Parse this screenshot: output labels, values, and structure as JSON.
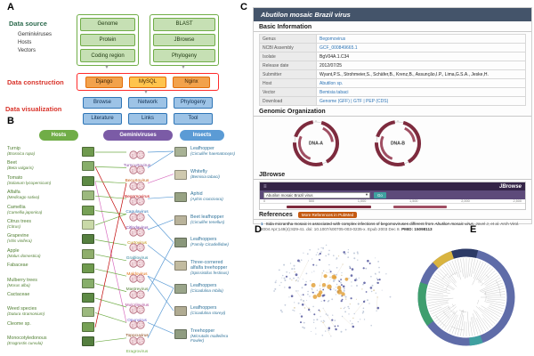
{
  "figure": {
    "labels": {
      "a": "A",
      "b": "B",
      "c": "C",
      "d": "D",
      "e": "E"
    }
  },
  "colors": {
    "green": "#70ad47",
    "green_dark": "#2e6b4f",
    "green_text": "#538135",
    "red_label": "#d9342b",
    "orange": "#f2a24c",
    "orange_border": "#e36c0a",
    "mysql_yellow": "#ffc44d",
    "blue_box": "#9dc3e6",
    "blue_border": "#2e75b6",
    "purple_pill": "#7b5ba6",
    "blue_pill": "#5b9bd5",
    "insect_text": "#31749b",
    "link": "#2e75b6",
    "titlebar": "#44546a",
    "maroon": "#7e2b3e",
    "jbrowse_dark": "#342447",
    "jbrowse_mid": "#5d4a7a",
    "pubmed_btn": "#c55a11",
    "ring_blue": "#5f6ca8",
    "net_small": "#b9c3d6",
    "net_medium": "#55589e",
    "net_accent": "#e3a23c",
    "net_tan": "#d8c8a0"
  },
  "panelA": {
    "data_source_label": "Data source",
    "source_items": [
      "Geminiviruses",
      "Hosts",
      "Vectors"
    ],
    "genomics_boxes": [
      "Genome",
      "Protein",
      "Coding region"
    ],
    "tools_boxes": [
      "BLAST",
      "JBrowse",
      "Phylogeny"
    ],
    "construction_label": "Data construction",
    "construction_boxes": [
      "Django",
      "MySQL",
      "Nginx"
    ],
    "visualization_label": "Data visualization",
    "visualization_boxes_row1": [
      "Browse",
      "Network",
      "Phylogeny"
    ],
    "visualization_boxes_row2": [
      "Literature",
      "Links",
      "Tool"
    ]
  },
  "panelB": {
    "column_headers": {
      "hosts": "Hosts",
      "viruses": "Geminiviruses",
      "insects": "Insects"
    },
    "hosts": [
      {
        "name": "Turnip",
        "latin": "(Brassica rapa)"
      },
      {
        "name": "Beet",
        "latin": "(Beta vulgaris)"
      },
      {
        "name": "Tomato",
        "latin": "(Solanum lycopersicum)"
      },
      {
        "name": "Alfalfa",
        "latin": "(Medicago sativa)"
      },
      {
        "name": "Camellia",
        "latin": "(Camellia japonica)"
      },
      {
        "name": "Citrus trees",
        "latin": "(Citrus)"
      },
      {
        "name": "Grapevine",
        "latin": "(Vitis vinifera)"
      },
      {
        "name": "Apple",
        "latin": "(Malus domestica)"
      },
      {
        "name": "Fabaceae",
        "latin": ""
      },
      {
        "name": "Mulberry trees",
        "latin": "(Morus alba)"
      },
      {
        "name": "Cactaceae",
        "latin": ""
      },
      {
        "name": "Weed species",
        "latin": "(Datura stramonium)"
      },
      {
        "name": "Cleome sp.",
        "latin": ""
      },
      {
        "name": "Monocotyledonous",
        "latin": "(Eragrostis curvula)"
      }
    ],
    "viruses": [
      {
        "name": "Turncurtovirus",
        "color": "#8a4ea6"
      },
      {
        "name": "Becurtovirus",
        "color": "#c55a11"
      },
      {
        "name": "Begomovirus",
        "color": "#c00000"
      },
      {
        "name": "Capulavirus",
        "color": "#2e75b6"
      },
      {
        "name": "Citlodavirus",
        "color": "#7030a0"
      },
      {
        "name": "Curtovirus",
        "color": "#bf8f00"
      },
      {
        "name": "Grablovirus",
        "color": "#31869b"
      },
      {
        "name": "Maldovirus",
        "color": "#e36c0a"
      },
      {
        "name": "Mastrevirus",
        "color": "#538135"
      },
      {
        "name": "Mulcrilevirus",
        "color": "#b04a98"
      },
      {
        "name": "Opunvirus",
        "color": "#6a5acd"
      },
      {
        "name": "Topocuvirus",
        "color": "#843c0c"
      },
      {
        "name": "Eragrovirus",
        "color": "#70ad47"
      }
    ],
    "insects": [
      {
        "name": "Leafhopper",
        "latin": "(Circulifer haematoceps)"
      },
      {
        "name": "Whitefly",
        "latin": "(Bemisia tabaci)"
      },
      {
        "name": "Aphid",
        "latin": "(Aphis craccivora)"
      },
      {
        "name": "Beet leafhopper",
        "latin": "(Circulifer tenellus)"
      },
      {
        "name": "Leafhoppers",
        "latin": "(Family Cicadellidae)"
      },
      {
        "name": "Three-cornered alfalfa treehopper",
        "latin": "(Spissistilus festinus)"
      },
      {
        "name": "Leafhoppers",
        "latin": "(Cicadulina mbila)"
      },
      {
        "name": "Leafhoppers",
        "latin": "(Cicadulina storeyi)"
      },
      {
        "name": "Treehopper",
        "latin": "(Micrutalis malleifera Fowler)"
      }
    ],
    "host_virus_links": [
      [
        0,
        0,
        "#70ad47"
      ],
      [
        1,
        1,
        "#70ad47"
      ],
      [
        1,
        5,
        "#c00000"
      ],
      [
        2,
        2,
        "#70ad47"
      ],
      [
        2,
        11,
        "#d86ec0"
      ],
      [
        3,
        3,
        "#70ad47"
      ],
      [
        4,
        4,
        "#70ad47"
      ],
      [
        5,
        4,
        "#70ad47"
      ],
      [
        6,
        6,
        "#70ad47"
      ],
      [
        7,
        7,
        "#70ad47"
      ],
      [
        8,
        8,
        "#70ad47"
      ],
      [
        9,
        9,
        "#70ad47"
      ],
      [
        10,
        10,
        "#70ad47"
      ],
      [
        11,
        11,
        "#70ad47"
      ],
      [
        12,
        2,
        "#c00000"
      ],
      [
        13,
        12,
        "#70ad47"
      ]
    ],
    "virus_insect_links": [
      [
        0,
        0,
        "#5b9bd5"
      ],
      [
        1,
        0,
        "#5b9bd5"
      ],
      [
        2,
        1,
        "#d86ec0"
      ],
      [
        3,
        2,
        "#5b9bd5"
      ],
      [
        4,
        4,
        "#5b9bd5"
      ],
      [
        5,
        3,
        "#5b9bd5"
      ],
      [
        6,
        5,
        "#5b9bd5"
      ],
      [
        8,
        6,
        "#5b9bd5"
      ],
      [
        8,
        7,
        "#5b9bd5"
      ],
      [
        9,
        4,
        "#5b9bd5"
      ],
      [
        11,
        8,
        "#5b9bd5"
      ],
      [
        12,
        6,
        "#5b9bd5"
      ]
    ]
  },
  "panelC": {
    "title": "Abutilon mosaic Brazil virus",
    "basic_info_header": "Basic Information",
    "info_rows": [
      {
        "label": "Genus",
        "value": "Begomovirus",
        "link": true
      },
      {
        "label": "NCBI Assembly",
        "value": "GCF_000849665.1",
        "link": true
      },
      {
        "label": "Isolate",
        "value": "BgV04A.1.C34",
        "link": false
      },
      {
        "label": "Release date",
        "value": "2012/07/25",
        "link": false
      },
      {
        "label": "Submitter",
        "value": "Wyant,P.S., Strohmeier,S., Schäfer,B., Krenz,B., Assunção,I.P., Lima,G.S.A., Jeske,H.",
        "link": false
      },
      {
        "label": "Host",
        "value": "Abutilon sp.",
        "link": true
      },
      {
        "label": "Vector",
        "value": "Bemisia tabaci",
        "link": true
      },
      {
        "label": "Download",
        "value": "Genome (GFF) | GTF | PEP (CDS)",
        "link": true
      }
    ],
    "genomic_header": "Genomic Organization",
    "genome_maps": [
      {
        "label": "DNA-A"
      },
      {
        "label": "DNA-B"
      }
    ],
    "jbrowse_header": "JBrowse",
    "jbrowse": {
      "logo": "JBrowse",
      "menu_icon": "≡",
      "search_value": "Abutilon mosaic Brazil virus",
      "caret": "▾",
      "go_button": "Go",
      "ruler": [
        "0",
        "500",
        "1,000",
        "1,500",
        "2,000",
        "2,500"
      ]
    },
    "references_header": "References",
    "pubmed_button": "More References in PubMed",
    "reference": {
      "index": "1",
      "text_before": "Sida micrantha mosaic is associated with complex infections of begomoviruses different from ",
      "text_italic": "Abutilon mosaic virus",
      "text_after": ".",
      "citation": "Jovel J, et al. Arch Virol. 2004 Apr;149(4):829-41. doi: 10.1007/s00705-003-0235-x. Epub 2003 Dec 8.",
      "pmid": "PMID: 15098113"
    }
  },
  "panelE": {
    "ring_segments": [
      {
        "color": "#2c3a66",
        "start": -18,
        "end": 14
      },
      {
        "color": "#d9b440",
        "start": -44,
        "end": -18
      },
      {
        "color": "#3f9e6e",
        "start": -126,
        "end": -72
      },
      {
        "color": "#3fa0a0",
        "start": 160,
        "end": 176
      }
    ]
  }
}
